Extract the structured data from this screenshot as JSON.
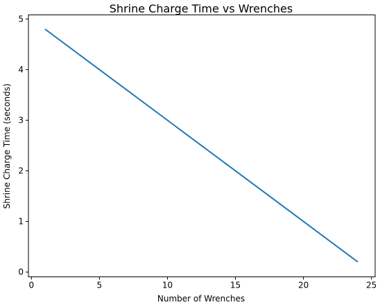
{
  "chart_data": {
    "type": "line",
    "title": "Shrine Charge Time vs Wrenches",
    "xlabel": "Number of Wrenches",
    "ylabel": "Shrine Charge Time (seconds)",
    "xlim": [
      0,
      25
    ],
    "ylim": [
      0,
      5
    ],
    "x_ticks": [
      0,
      5,
      10,
      15,
      20,
      25
    ],
    "y_ticks": [
      0,
      1,
      2,
      3,
      4,
      5
    ],
    "grid": false,
    "series": [
      {
        "color": "#1f77b4",
        "x": [
          1,
          24
        ],
        "y": [
          4.8,
          0.2
        ]
      }
    ]
  }
}
